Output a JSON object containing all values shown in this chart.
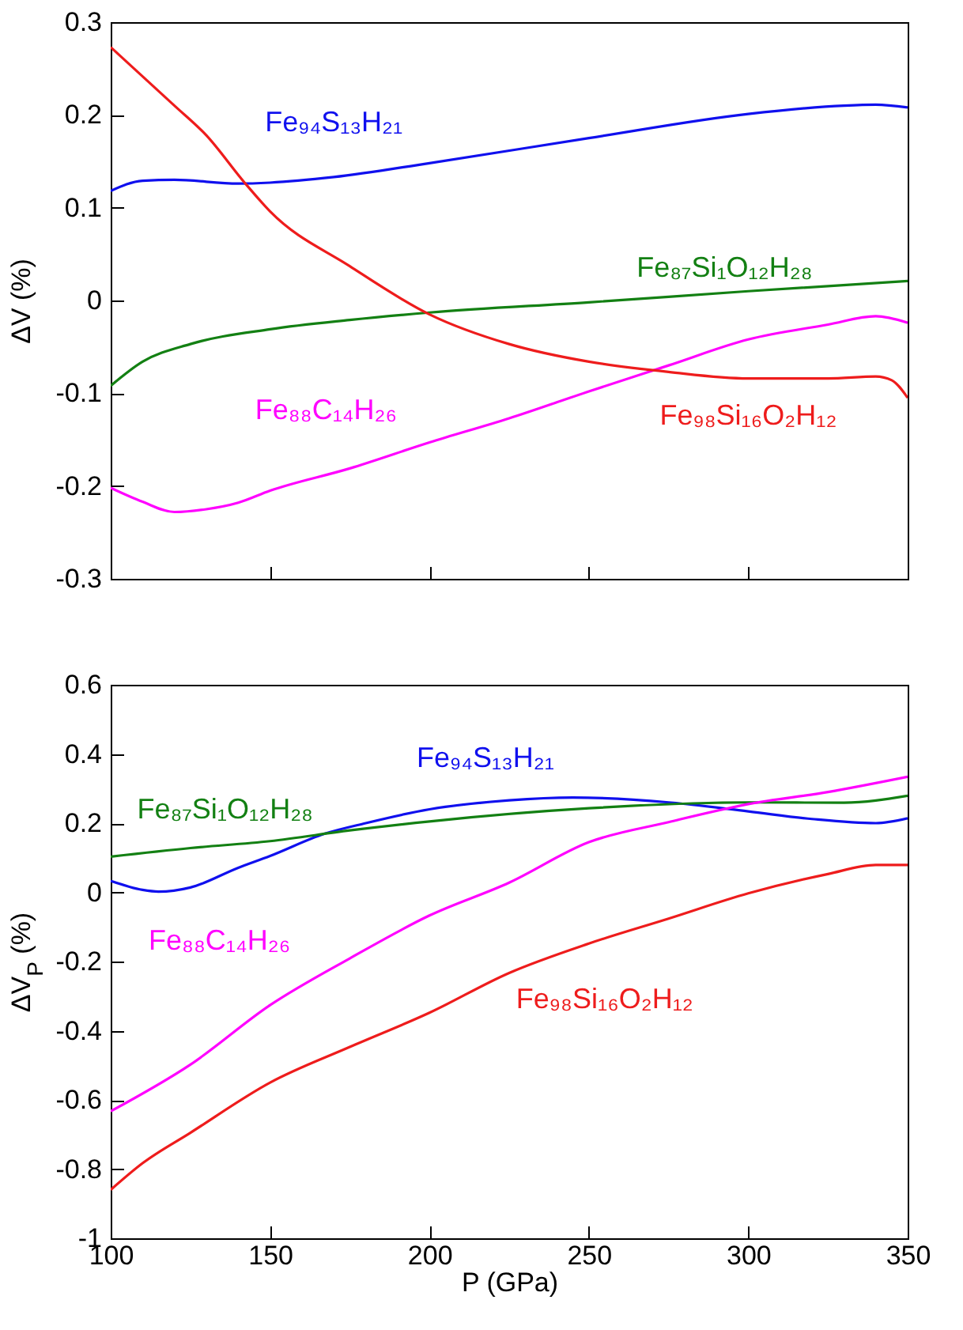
{
  "chart_data": [
    {
      "type": "line",
      "ylabel": "ΔV (%)",
      "xlim": [
        100,
        350
      ],
      "xticks": [
        100,
        150,
        200,
        250,
        300,
        350
      ],
      "ylim": [
        -0.3,
        0.3
      ],
      "yticks": [
        -0.3,
        -0.2,
        -0.1,
        0,
        0.1,
        0.2,
        0.3
      ],
      "tick_labels": "y",
      "grid": false,
      "legend": false,
      "marker": "none",
      "line_style": "solid",
      "series": [
        {
          "name": "Fe₉₄S₁₃H₂₁",
          "color": "#1010ee",
          "x": [
            100,
            110,
            120,
            140,
            150,
            170,
            200,
            250,
            300,
            330,
            340,
            350
          ],
          "values": [
            0.118,
            0.129,
            0.13,
            0.126,
            0.127,
            0.133,
            0.148,
            0.175,
            0.201,
            0.21,
            0.211,
            0.208
          ]
        },
        {
          "name": "Fe₈₇Si₁O₁₂H₂₈",
          "color": "#138013",
          "x": [
            100,
            110,
            125,
            150,
            175,
            200,
            250,
            300,
            350
          ],
          "values": [
            -0.092,
            -0.066,
            -0.047,
            -0.031,
            -0.021,
            -0.013,
            -0.002,
            0.01,
            0.021
          ]
        },
        {
          "name": "Fe₈₈C₁₄H₂₆",
          "color": "#ff00ff",
          "x": [
            100,
            110,
            120,
            130,
            140,
            150,
            175,
            200,
            225,
            250,
            275,
            300,
            325,
            340,
            350
          ],
          "values": [
            -0.202,
            -0.217,
            -0.228,
            -0.225,
            -0.218,
            -0.205,
            -0.181,
            -0.153,
            -0.127,
            -0.098,
            -0.07,
            -0.042,
            -0.026,
            -0.017,
            -0.024
          ]
        },
        {
          "name": "Fe₉₈Si₁₆O₂H₁₂",
          "color": "#ee1c1c",
          "x": [
            100,
            120,
            130,
            142,
            150,
            175,
            200,
            225,
            250,
            275,
            300,
            325,
            340,
            345,
            350
          ],
          "values": [
            0.273,
            0.21,
            0.178,
            0.127,
            0.096,
            0.037,
            -0.015,
            -0.047,
            -0.066,
            -0.077,
            -0.084,
            -0.084,
            -0.082,
            -0.086,
            -0.105
          ]
        }
      ]
    },
    {
      "type": "line",
      "xlabel": "P (GPa)",
      "ylabel": "ΔV$_{P}$ (%)",
      "xlim": [
        100,
        350
      ],
      "xticks": [
        100,
        150,
        200,
        250,
        300,
        350
      ],
      "ylim": [
        -1,
        0.6
      ],
      "yticks": [
        -1,
        -0.8,
        -0.6,
        -0.4,
        -0.2,
        0,
        0.2,
        0.4,
        0.6
      ],
      "grid": false,
      "legend": false,
      "marker": "none",
      "line_style": "solid",
      "series": [
        {
          "name": "Fe₉₄S₁₃H₂₁",
          "color": "#1010ee",
          "x": [
            100,
            110,
            115,
            125,
            140,
            150,
            167,
            180,
            200,
            225,
            245,
            275,
            300,
            320,
            340,
            350
          ],
          "values": [
            0.033,
            0.007,
            0.002,
            0.014,
            0.071,
            0.105,
            0.169,
            0.2,
            0.24,
            0.266,
            0.274,
            0.26,
            0.234,
            0.212,
            0.2,
            0.214
          ]
        },
        {
          "name": "Fe₈₇Si₁O₁₂H₂₈",
          "color": "#138013",
          "x": [
            100,
            125,
            150,
            175,
            200,
            250,
            300,
            330,
            350
          ],
          "values": [
            0.103,
            0.128,
            0.148,
            0.179,
            0.205,
            0.243,
            0.26,
            0.259,
            0.279
          ]
        },
        {
          "name": "Fe₈₈C₁₄H₂₆",
          "color": "#ff00ff",
          "x": [
            100,
            125,
            150,
            175,
            200,
            225,
            250,
            275,
            300,
            325,
            350
          ],
          "values": [
            -0.633,
            -0.498,
            -0.326,
            -0.191,
            -0.067,
            0.028,
            0.145,
            0.203,
            0.255,
            0.29,
            0.334
          ]
        },
        {
          "name": "Fe₉₈Si₁₆O₂H₁₂",
          "color": "#ee1c1c",
          "x": [
            100,
            110,
            125,
            150,
            175,
            200,
            225,
            250,
            275,
            300,
            325,
            340,
            350
          ],
          "values": [
            -0.86,
            -0.783,
            -0.695,
            -0.55,
            -0.447,
            -0.348,
            -0.233,
            -0.148,
            -0.076,
            -0.003,
            0.053,
            0.079,
            0.079
          ]
        }
      ]
    }
  ]
}
